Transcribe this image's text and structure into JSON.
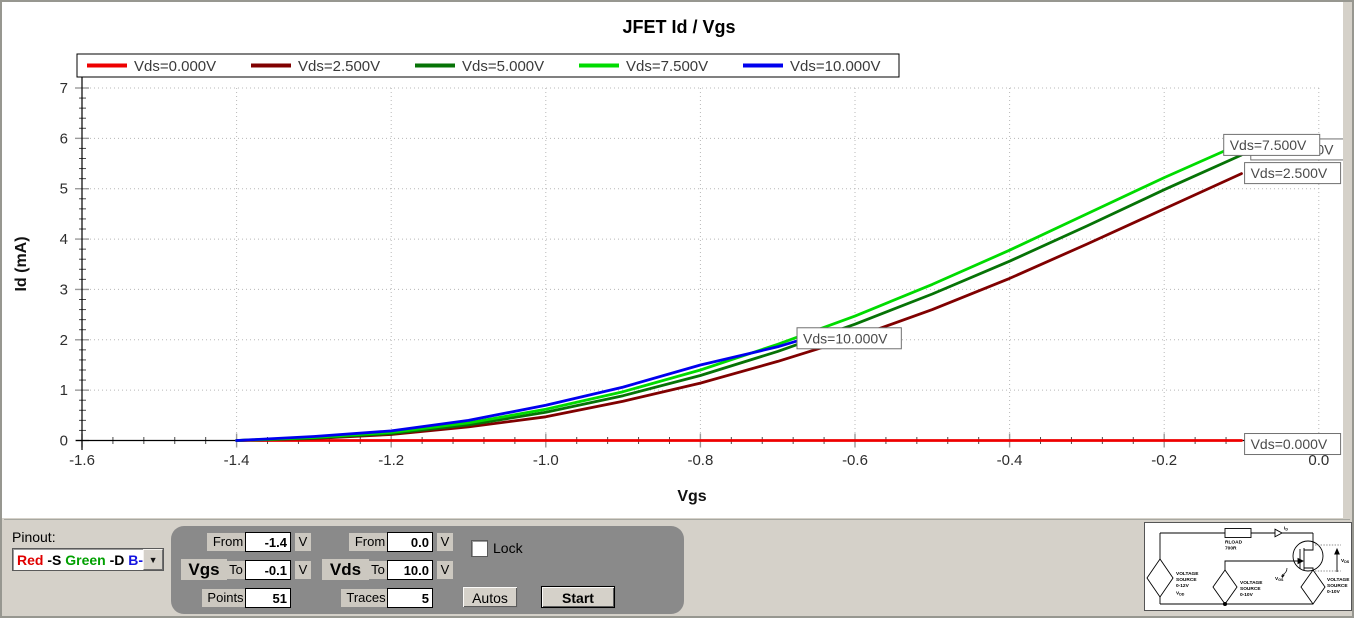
{
  "chart_data": {
    "type": "line",
    "title": "JFET Id / Vgs",
    "xlabel": "Vgs",
    "ylabel": "Id (mA)",
    "xlim": [
      -1.6,
      0.0
    ],
    "ylim": [
      0,
      7
    ],
    "grid": "dotted lines at every major tick, both axes",
    "legend_position": "top",
    "xticks": [
      {
        "v": -1.6,
        "label": "-1.6"
      },
      {
        "v": -1.4,
        "label": "-1.4"
      },
      {
        "v": -1.2,
        "label": "-1.2"
      },
      {
        "v": -1.0,
        "label": "-1.0"
      },
      {
        "v": -0.8,
        "label": "-0.8"
      },
      {
        "v": -0.6,
        "label": "-0.6"
      },
      {
        "v": -0.4,
        "label": "-0.4"
      },
      {
        "v": -0.2,
        "label": "-0.2"
      },
      {
        "v": 0.0,
        "label": "0.0"
      }
    ],
    "yticks": [
      {
        "v": 0,
        "label": "0"
      },
      {
        "v": 1,
        "label": "1"
      },
      {
        "v": 2,
        "label": "2"
      },
      {
        "v": 3,
        "label": "3"
      },
      {
        "v": 4,
        "label": "4"
      },
      {
        "v": 5,
        "label": "5"
      },
      {
        "v": 6,
        "label": "6"
      },
      {
        "v": 7,
        "label": "7"
      }
    ],
    "series": [
      {
        "name": "Vds=0.000V",
        "color": "#ee0000",
        "points": [
          [
            -1.4,
            0
          ],
          [
            -1.2,
            0
          ],
          [
            -1.0,
            0
          ],
          [
            -0.8,
            0
          ],
          [
            -0.6,
            0
          ],
          [
            -0.4,
            0
          ],
          [
            -0.2,
            0
          ],
          [
            -0.1,
            0
          ]
        ]
      },
      {
        "name": "Vds=2.500V",
        "color": "#800000",
        "points": [
          [
            -1.4,
            0
          ],
          [
            -1.3,
            0.04
          ],
          [
            -1.2,
            0.12
          ],
          [
            -1.1,
            0.27
          ],
          [
            -1.0,
            0.47
          ],
          [
            -0.9,
            0.78
          ],
          [
            -0.8,
            1.14
          ],
          [
            -0.7,
            1.57
          ],
          [
            -0.6,
            2.05
          ],
          [
            -0.5,
            2.6
          ],
          [
            -0.4,
            3.22
          ],
          [
            -0.3,
            3.9
          ],
          [
            -0.2,
            4.6
          ],
          [
            -0.1,
            5.3
          ]
        ]
      },
      {
        "name": "Vds=5.000V",
        "color": "#067306",
        "points": [
          [
            -1.4,
            0
          ],
          [
            -1.3,
            0.05
          ],
          [
            -1.2,
            0.14
          ],
          [
            -1.1,
            0.31
          ],
          [
            -1.0,
            0.56
          ],
          [
            -0.9,
            0.89
          ],
          [
            -0.8,
            1.29
          ],
          [
            -0.7,
            1.77
          ],
          [
            -0.6,
            2.31
          ],
          [
            -0.5,
            2.91
          ],
          [
            -0.4,
            3.56
          ],
          [
            -0.3,
            4.26
          ],
          [
            -0.2,
            4.98
          ],
          [
            -0.1,
            5.67
          ]
        ]
      },
      {
        "name": "Vds=7.500V",
        "color": "#00db00",
        "points": [
          [
            -1.4,
            0
          ],
          [
            -1.3,
            0.06
          ],
          [
            -1.2,
            0.16
          ],
          [
            -1.1,
            0.35
          ],
          [
            -1.0,
            0.62
          ],
          [
            -0.9,
            0.97
          ],
          [
            -0.8,
            1.4
          ],
          [
            -0.7,
            1.91
          ],
          [
            -0.6,
            2.47
          ],
          [
            -0.5,
            3.1
          ],
          [
            -0.4,
            3.78
          ],
          [
            -0.3,
            4.5
          ],
          [
            -0.2,
            5.22
          ],
          [
            -0.1,
            5.9
          ]
        ]
      },
      {
        "name": "Vds=10.000V",
        "color": "#0000ee",
        "points": [
          [
            -1.4,
            0
          ],
          [
            -1.3,
            0.08
          ],
          [
            -1.2,
            0.19
          ],
          [
            -1.1,
            0.4
          ],
          [
            -1.0,
            0.7
          ],
          [
            -0.9,
            1.06
          ],
          [
            -0.8,
            1.5
          ],
          [
            -0.7,
            1.86
          ],
          [
            -0.67,
            2.0
          ]
        ]
      }
    ],
    "curve_labels": [
      {
        "text": "Vds=5.000V",
        "vgs": -0.088,
        "id_mA": 5.78
      },
      {
        "text": "Vds=7.500V",
        "vgs": -0.123,
        "id_mA": 5.87
      },
      {
        "text": "Vds=2.500V",
        "vgs": -0.096,
        "id_mA": 5.31
      },
      {
        "text": "Vds=10.000V",
        "vgs": -0.675,
        "id_mA": 2.03
      },
      {
        "text": "Vds=0.000V",
        "vgs": -0.096,
        "id_mA": -0.07
      }
    ]
  },
  "controls": {
    "pinout_label": "Pinout:",
    "pinout_parts": [
      {
        "text": "Red",
        "color": "#e00000"
      },
      {
        "text": " -S ",
        "color": "#000000"
      },
      {
        "text": "Green",
        "color": "#00a000"
      },
      {
        "text": " -D ",
        "color": "#000000"
      },
      {
        "text": "B-",
        "color": "#1414e0"
      }
    ],
    "vgs": {
      "label": "Vgs",
      "from_label": "From",
      "from_value": "-1.4",
      "to_label": "To",
      "to_value": "-0.1",
      "unit": "V",
      "points_label": "Points",
      "points_value": "51"
    },
    "vds": {
      "label": "Vds",
      "from_label": "From",
      "from_value": "0.0",
      "to_label": "To",
      "to_value": "10.0",
      "unit": "V",
      "traces_label": "Traces",
      "traces_value": "5"
    },
    "lock_label": "Lock",
    "autos_label": "Autos",
    "start_label": "Start"
  },
  "schematic": {
    "rload_line1": "RLOAD",
    "rload_line2": "700R",
    "i_prefix": "I",
    "d_sub": "D",
    "v_prefix1": "V",
    "ds_sub": "DS",
    "v_prefix2": "V",
    "gs_sub": "GS",
    "v_prefix3": "V",
    "dd_sub": "DD",
    "src_left_1": "VOLTAGE",
    "src_left_2": "SOURCE",
    "src_left_3": "0-12V",
    "src_mid_1": "VOLTAGE",
    "src_mid_2": "SOURCE",
    "src_mid_3": "0-10V",
    "src_right_1": "VOLTAGE",
    "src_right_2": "SOURCE",
    "src_right_3": "0-10V"
  }
}
